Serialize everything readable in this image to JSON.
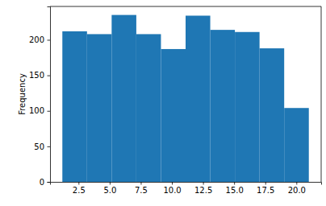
{
  "chart_data": {
    "type": "histogram",
    "y_label": "Frequency",
    "bins": [
      1.2,
      3.18,
      5.16,
      7.14,
      9.12,
      11.1,
      13.08,
      15.06,
      17.04,
      19.02,
      21.0
    ],
    "values": [
      212,
      208,
      235,
      208,
      187,
      234,
      214,
      211,
      188,
      104
    ],
    "color": "#1f77b4",
    "xlim": [
      0.21,
      21.99
    ],
    "xticks": [
      2.5,
      {
        "value": 5,
        "label": "5.0"
      },
      7.5,
      {
        "value": 10,
        "label": "10.0"
      },
      12.5,
      {
        "value": 15,
        "label": "15.0"
      },
      17.5,
      {
        "value": 20,
        "label": "20.0"
      }
    ],
    "ylim": [
      0,
      247
    ],
    "yticks": [
      0,
      50,
      100,
      150,
      200
    ],
    "grid": false
  }
}
